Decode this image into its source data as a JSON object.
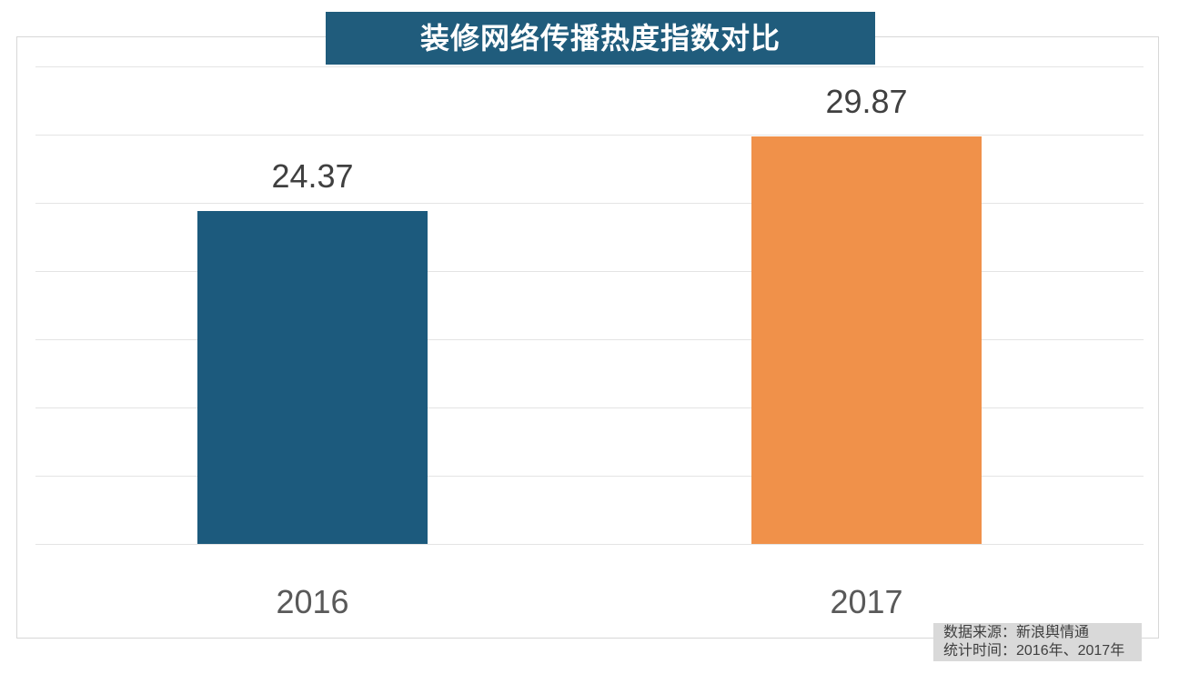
{
  "title": {
    "text": "装修网络传播热度指数对比",
    "bg": "#205c7c",
    "color": "#ffffff"
  },
  "chart_data": {
    "type": "bar",
    "title": "装修网络传播热度指数对比",
    "categories": [
      "2016",
      "2017"
    ],
    "values": [
      24.37,
      29.87
    ],
    "value_labels": [
      "24.37",
      "29.87"
    ],
    "bar_colors": [
      "#1c5a7d",
      "#f0914a"
    ],
    "xlabel": "",
    "ylabel": "",
    "ylim": [
      0,
      35
    ],
    "grid_step": 5,
    "grid": true,
    "gridline_color": "#e4e4e4",
    "legend_position": "none",
    "value_label_color": "#404040",
    "axis_label_color": "#595959"
  },
  "footer": {
    "lines": [
      "数据来源：新浪舆情通",
      "统计时间：2016年、2017年"
    ],
    "bg": "#d9d9d9",
    "color": "#3f3f3f"
  }
}
